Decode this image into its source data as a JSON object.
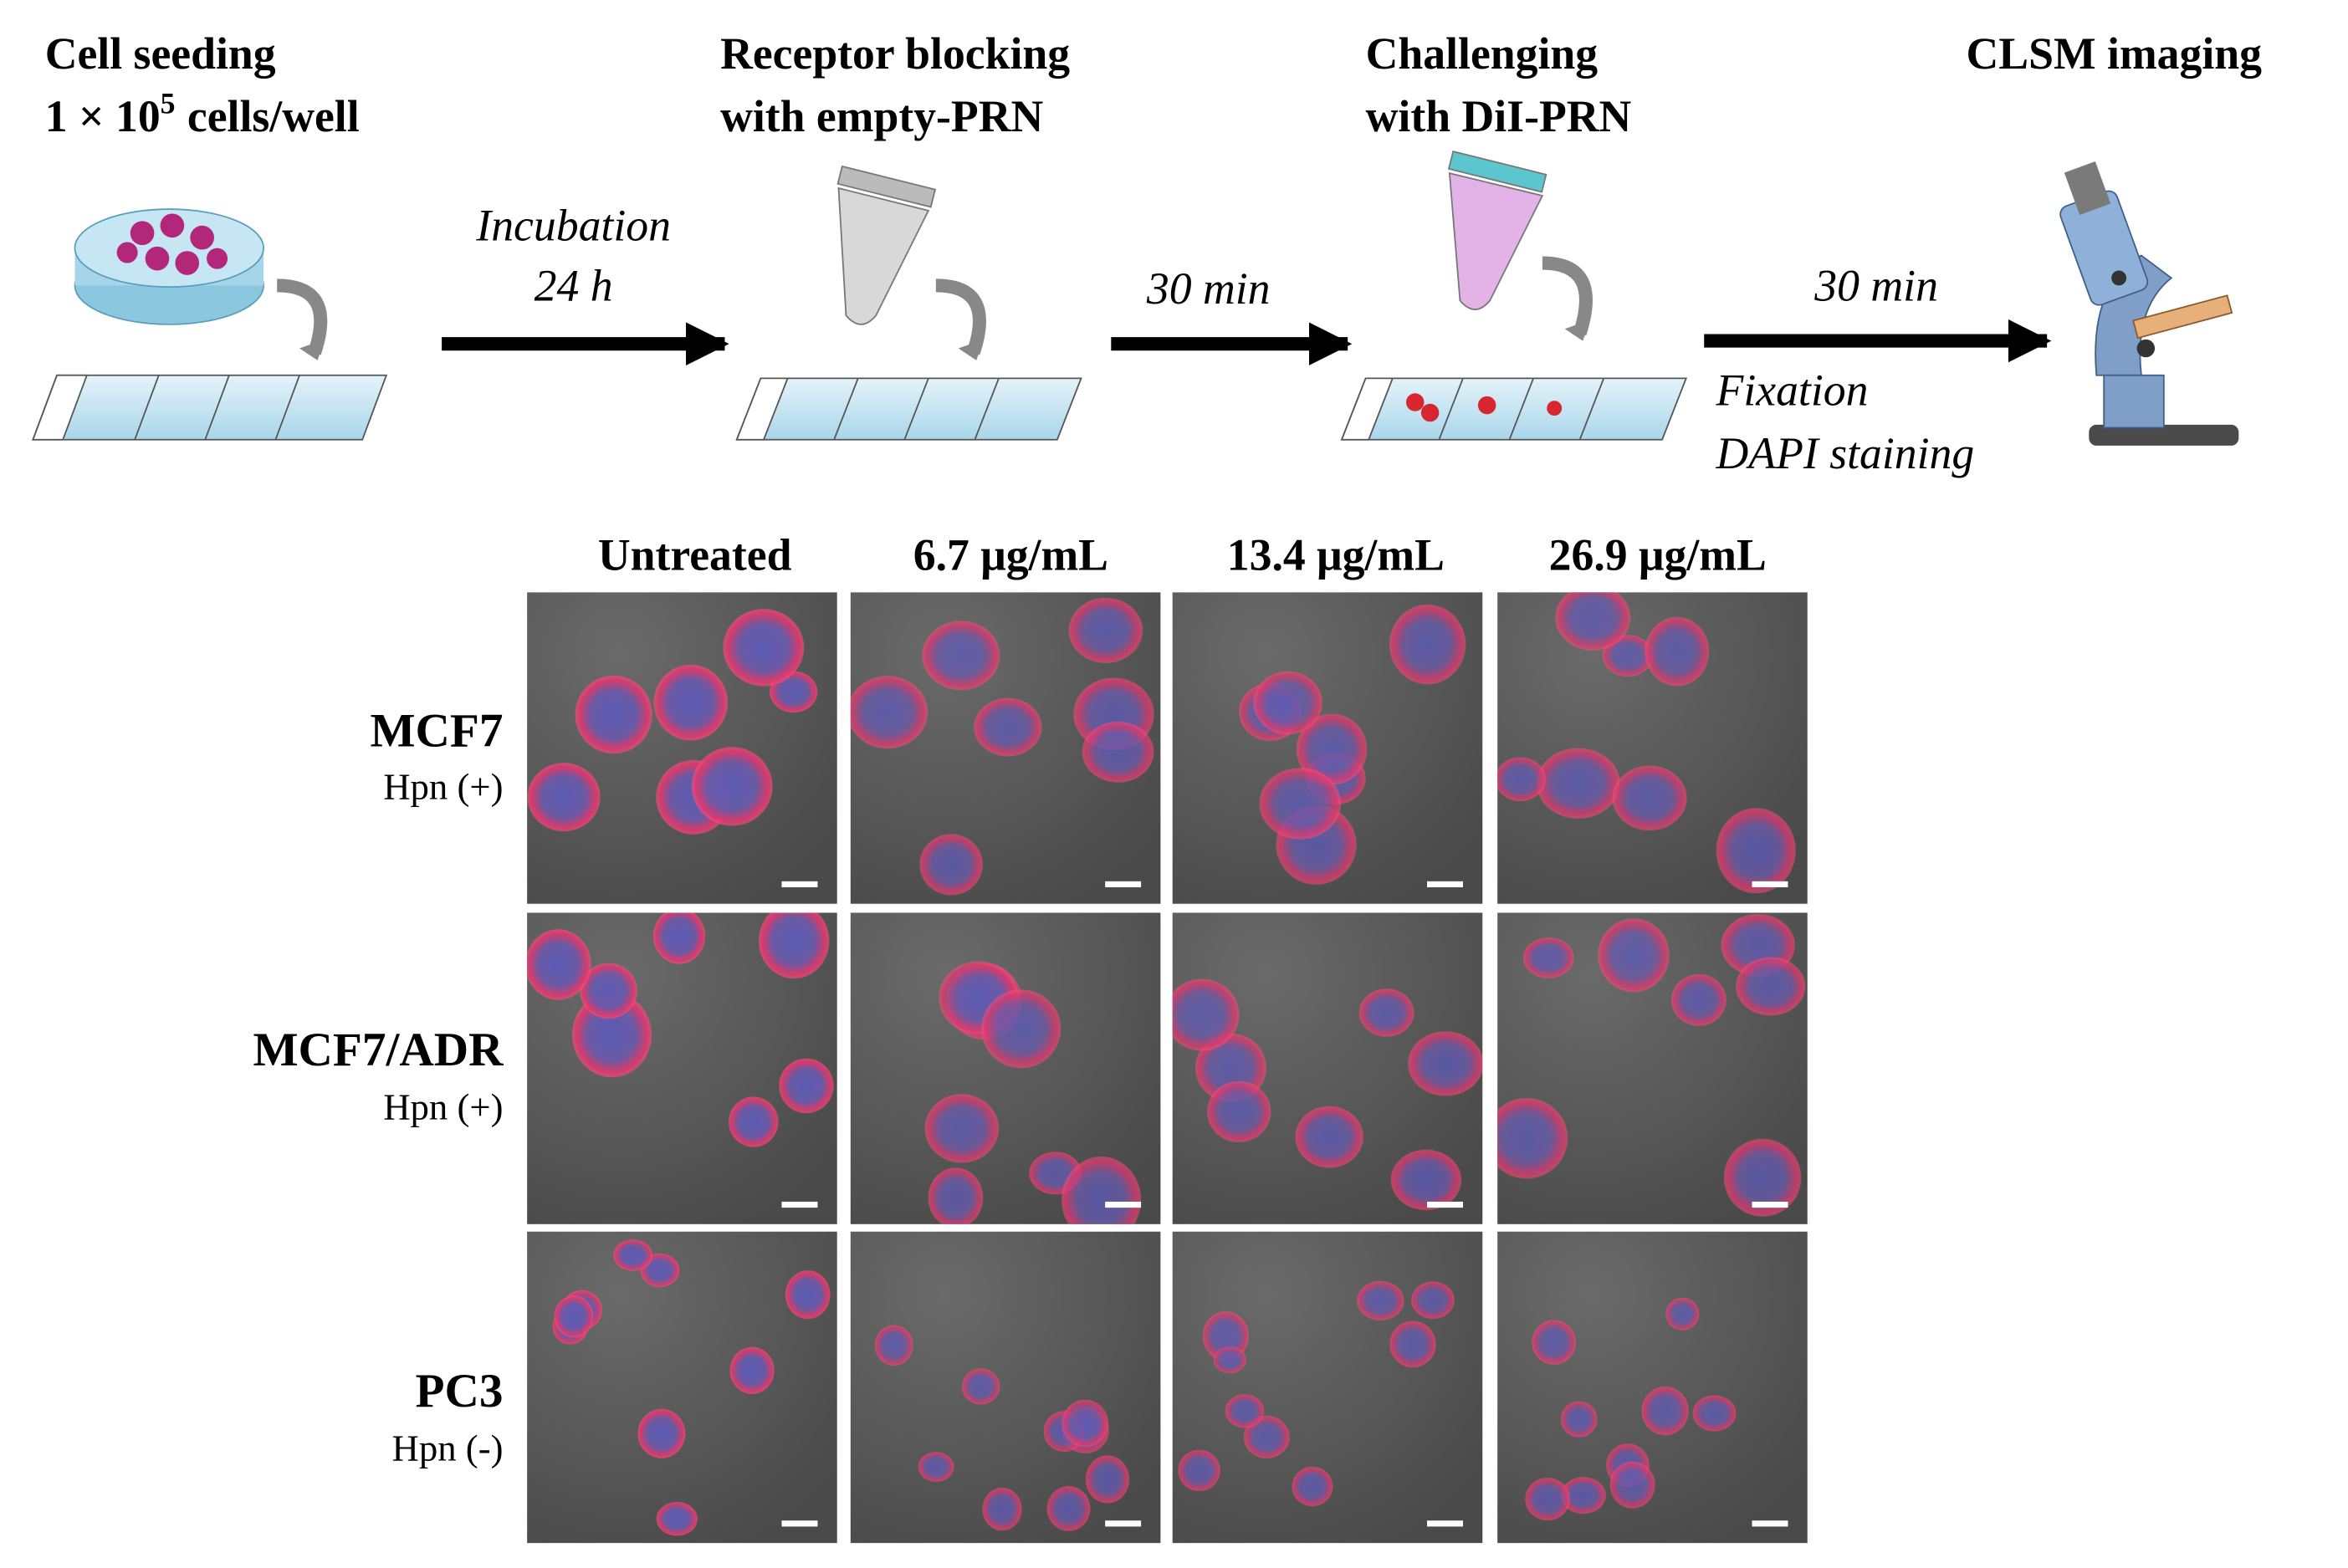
{
  "workflow": {
    "steps": [
      {
        "line1": "Cell seeding",
        "line2_base": "1 × 10",
        "line2_exponent": "5",
        "line2_unit": "cells/well"
      },
      {
        "line1": "Receptor blocking",
        "line2": "with empty-PRN"
      },
      {
        "line1": "Challenging",
        "line2": "with DiI-PRN"
      },
      {
        "line1": "CLSM imaging"
      }
    ],
    "transitions": [
      {
        "lines": [
          "Incubation",
          "24 h"
        ]
      },
      {
        "lines": [
          "30 min"
        ]
      },
      {
        "lines": [
          "30 min"
        ],
        "notes": [
          "Fixation",
          "DAPI staining"
        ]
      }
    ]
  },
  "panels": {
    "columns": [
      "Untreated",
      "6.7 μg/mL",
      "13.4 μg/mL",
      "26.9 μg/mL"
    ],
    "rows": [
      {
        "name": "MCF7",
        "receptor": "Hpn (+)"
      },
      {
        "name": "MCF7/ADR",
        "receptor": "Hpn (+)"
      },
      {
        "name": "PC3",
        "receptor": "Hpn (-)"
      }
    ]
  }
}
